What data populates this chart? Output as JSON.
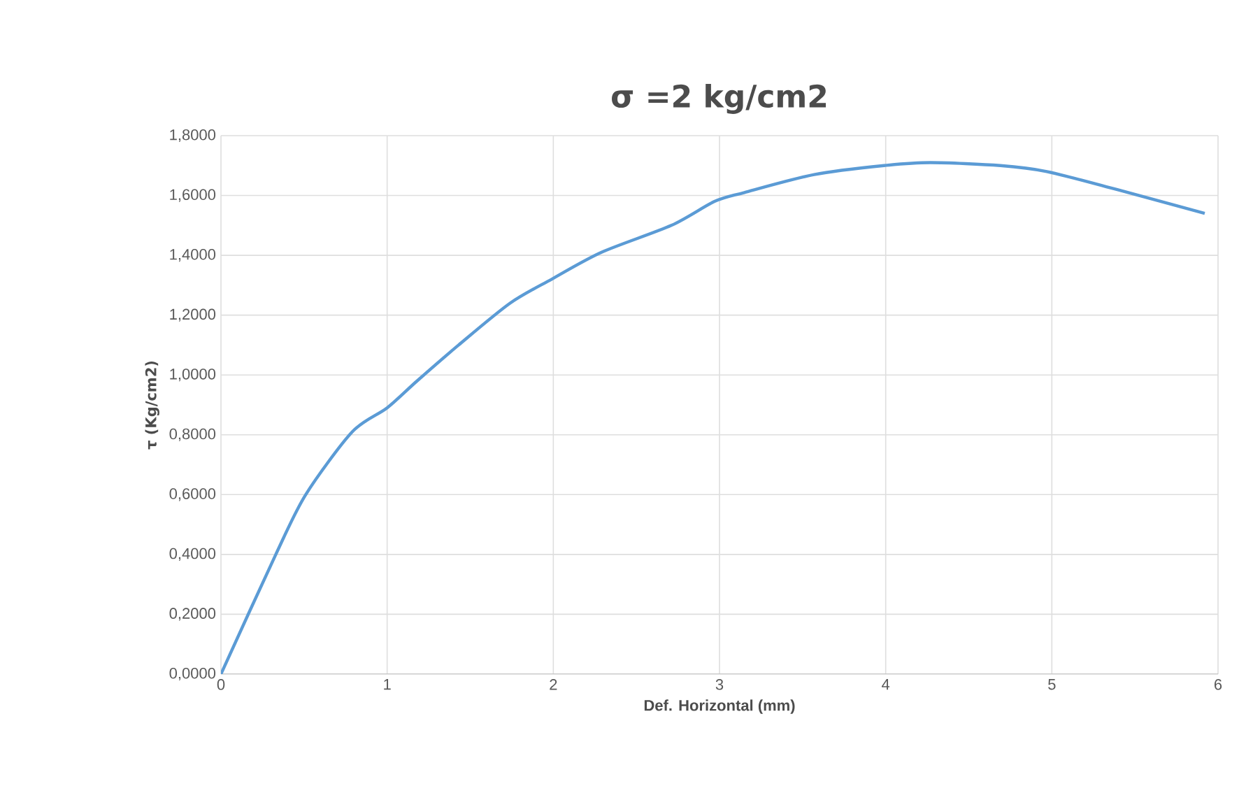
{
  "chart_data": {
    "type": "line",
    "title": "σ =2 kg/cm2",
    "xlabel": "Def. Horizontal  (mm)",
    "ylabel": "τ (Kg/cm2)",
    "xlim": [
      0,
      6
    ],
    "ylim": [
      0,
      1.8
    ],
    "xticks": [
      0,
      1,
      2,
      3,
      4,
      5,
      6
    ],
    "yticks": [
      {
        "value": 0,
        "label": "0,0000"
      },
      {
        "value": 0.2,
        "label": "0,2000"
      },
      {
        "value": 0.4,
        "label": "0,4000"
      },
      {
        "value": 0.6,
        "label": "0,6000"
      },
      {
        "value": 0.8,
        "label": "0,8000"
      },
      {
        "value": 1.0,
        "label": "1,0000"
      },
      {
        "value": 1.2,
        "label": "1,2000"
      },
      {
        "value": 1.4,
        "label": "1,4000"
      },
      {
        "value": 1.6,
        "label": "1,6000"
      },
      {
        "value": 1.8,
        "label": "1,8000"
      }
    ],
    "grid": true,
    "marker": "none",
    "line_style": "solid",
    "series": [
      {
        "color": "#5b9bd5",
        "x": [
          0,
          0.33,
          0.51,
          0.79,
          1.0,
          1.18,
          1.43,
          1.74,
          1.99,
          2.29,
          2.71,
          2.97,
          3.15,
          3.57,
          3.99,
          4.27,
          4.69,
          4.97,
          5.39,
          5.92
        ],
        "values": [
          0,
          0.4,
          0.6,
          0.81,
          0.89,
          0.98,
          1.1,
          1.24,
          1.32,
          1.41,
          1.5,
          1.58,
          1.61,
          1.67,
          1.7,
          1.71,
          1.7,
          1.68,
          1.62,
          1.54
        ]
      }
    ]
  }
}
